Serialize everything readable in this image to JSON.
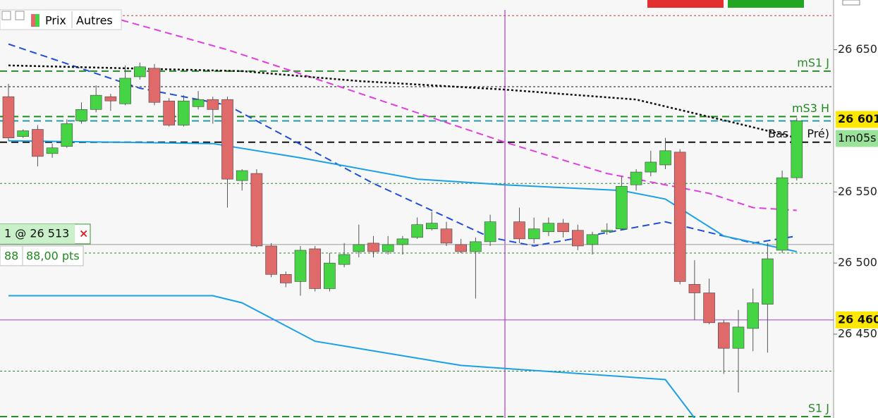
{
  "legend_tabs": [
    "Prix",
    "Autres"
  ],
  "chart_data": {
    "type": "candlestick",
    "ylim": [
      26391,
      26685
    ],
    "yticks": [
      {
        "value": 26650,
        "label": "26 650"
      },
      {
        "value": 26550,
        "label": "26 550"
      },
      {
        "value": 26500,
        "label": "26 500"
      },
      {
        "value": 26450,
        "label": "26 450"
      }
    ],
    "up_color": "#44d444",
    "down_color": "#e06a6a",
    "candles": {
      "open": [
        26617,
        26589,
        26594,
        26577,
        26582,
        26600,
        26608,
        26617,
        26612,
        26631,
        26637,
        26614,
        26597,
        26610,
        26615,
        26615,
        26558,
        26563,
        26512,
        26492,
        26487,
        26510,
        26482,
        26499,
        26508,
        26514,
        26508,
        26513,
        26518,
        26524,
        26524,
        26513,
        26508,
        26515,
        null,
        26529,
        26517,
        26522,
        26528,
        26523,
        26513,
        26522,
        26524,
        26555,
        26564,
        26569,
        26578,
        26485,
        26479,
        26458,
        26440,
        26454,
        26471,
        26509,
        26560
      ],
      "high": [
        26626,
        26594,
        26597,
        26584,
        26601,
        26613,
        26625,
        26619,
        26639,
        26641,
        26640,
        26616,
        26618,
        26621,
        26617,
        26617,
        26566,
        26566,
        26514,
        26494,
        26512,
        26512,
        26507,
        26514,
        26527,
        26519,
        26519,
        26519,
        26532,
        26536,
        26529,
        26517,
        26518,
        26534,
        null,
        26539,
        26532,
        26532,
        26531,
        26527,
        26522,
        26528,
        26561,
        26566,
        26579,
        26588,
        26580,
        26502,
        26489,
        26460,
        26467,
        26482,
        26514,
        26565,
        26602
      ],
      "low": [
        26586,
        26588,
        26568,
        26574,
        26581,
        26598,
        26606,
        26607,
        26611,
        26629,
        26611,
        26596,
        26596,
        26608,
        26598,
        26539,
        26551,
        26511,
        26490,
        26483,
        26477,
        26480,
        26480,
        26497,
        26504,
        26504,
        26506,
        26506,
        26517,
        26523,
        26512,
        26507,
        26475,
        26512,
        null,
        26514,
        26514,
        26519,
        26518,
        26509,
        26506,
        26520,
        26523,
        26551,
        26561,
        26566,
        26485,
        26460,
        26457,
        26422,
        26409,
        26438,
        26437,
        26507,
        26558
      ],
      "close": [
        26588,
        26593,
        26575,
        26581,
        26598,
        26608,
        26618,
        26614,
        26630,
        26638,
        26613,
        26597,
        26614,
        26615,
        26608,
        26559,
        26565,
        26512,
        26492,
        26486,
        26509,
        26482,
        26500,
        26506,
        26513,
        26508,
        26513,
        26517,
        26527,
        26528,
        26514,
        26508,
        26515,
        26529,
        null,
        26517,
        26524,
        26528,
        26522,
        26512,
        26520,
        26523,
        26554,
        26564,
        26571,
        26579,
        26487,
        26479,
        26458,
        26440,
        26455,
        26472,
        26503,
        26560,
        26600
      ]
    },
    "series": [
      {
        "color": "#e03ee0",
        "style": "dashed",
        "width": 2,
        "x": [
          7,
          15,
          23,
          34,
          41,
          48,
          51,
          54
        ],
        "values": [
          26673,
          26650,
          26623,
          26585,
          26563,
          26549,
          26539,
          26537
        ]
      },
      {
        "color": "#1f4fd8",
        "style": "dashed",
        "width": 2,
        "x": [
          0,
          9,
          15,
          25,
          33,
          36,
          45,
          51,
          54
        ],
        "values": [
          26654,
          26623,
          26611,
          26556,
          26518,
          26512,
          26529,
          26514,
          26519
        ]
      },
      {
        "color": "#1aa0e8",
        "style": "solid",
        "width": 2,
        "x": [
          0,
          14,
          20,
          28,
          34,
          42,
          45,
          49,
          54
        ],
        "values": [
          26586,
          26584,
          26574,
          26559,
          26555,
          26551,
          26545,
          26519,
          26508
        ]
      },
      {
        "color": "#1aa0e8",
        "style": "solid",
        "width": 2,
        "x": [
          0,
          14,
          16,
          21,
          31,
          45,
          47
        ],
        "values": [
          26477,
          26477,
          26472,
          26445,
          26428,
          26418,
          26391
        ]
      },
      {
        "color": "#111111",
        "style": "dotted",
        "width": 2.5,
        "x": [
          0,
          16,
          24,
          34,
          43,
          50,
          54
        ],
        "values": [
          26639,
          26635,
          26628,
          26622,
          26615,
          26598,
          26588
        ]
      }
    ],
    "levels": [
      {
        "value": 26674,
        "color": "#c04040",
        "style": "dotted"
      },
      {
        "label": "mS1 J",
        "value": 26635,
        "color": "#2a8a2a",
        "style": "dashed"
      },
      {
        "value": 26624,
        "color": "#111111",
        "style": "dotted"
      },
      {
        "label": "mS3 H",
        "value": 26603,
        "color": "#1e8a1e",
        "style": "dashed"
      },
      {
        "value": 26600,
        "color": "#20a0a0",
        "style": "dashed"
      },
      {
        "label": "Bas (J. Pré)",
        "value": 26585,
        "color": "#111111",
        "style": "dashed"
      },
      {
        "value": 26556,
        "color": "#2a8a2a",
        "style": "dotted"
      },
      {
        "value": 26507,
        "color": "#2a8a2a",
        "style": "dotted"
      },
      {
        "value": 26460,
        "color": "#9b3ed8",
        "style": "solid"
      },
      {
        "value": 26424,
        "color": "#2a8a2a",
        "style": "dotted"
      },
      {
        "label": "S1 J",
        "value": 26392,
        "color": "#2a8a2a",
        "style": "dashed"
      }
    ],
    "price_tags": [
      {
        "label": "26 601",
        "value": 26601,
        "color": "#ffe800"
      },
      {
        "label": "26 460",
        "value": 26460,
        "color": "#ffe800"
      }
    ],
    "timer": "1m05s",
    "order": {
      "label": "1 @ 26 513",
      "value": 26513,
      "points": 88,
      "points_label": "88,00 pts"
    }
  }
}
